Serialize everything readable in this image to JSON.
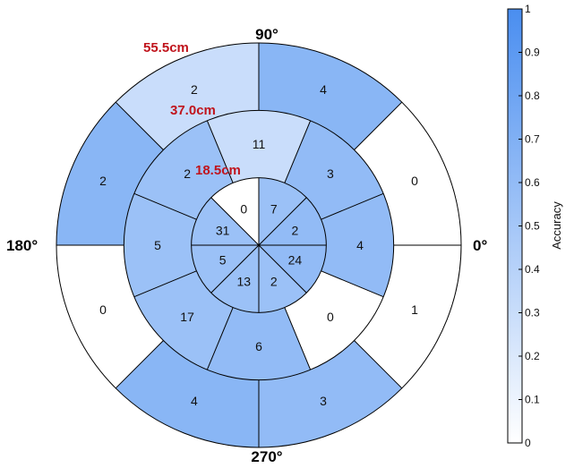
{
  "chart_data": {
    "type": "polar-heatmap",
    "angle_labels": [
      "90°",
      "180°",
      "0°",
      "270°"
    ],
    "radius_labels": [
      "55.5cm",
      "37.0cm",
      "18.5cm"
    ],
    "radii_cm": [
      18.5,
      37.0,
      55.5
    ],
    "sector_width_deg": 45,
    "rings": [
      {
        "name": "inner",
        "cells": [
          {
            "center_deg": 22.5,
            "count": 2,
            "accuracy": 0.6
          },
          {
            "center_deg": 67.5,
            "count": 7,
            "accuracy": 0.55
          },
          {
            "center_deg": 112.5,
            "count": 0,
            "accuracy": 0.0
          },
          {
            "center_deg": 157.5,
            "count": 31,
            "accuracy": 0.55
          },
          {
            "center_deg": 202.5,
            "count": 5,
            "accuracy": 0.55
          },
          {
            "center_deg": 247.5,
            "count": 13,
            "accuracy": 0.55
          },
          {
            "center_deg": 292.5,
            "count": 2,
            "accuracy": 0.55
          },
          {
            "center_deg": 337.5,
            "count": 24,
            "accuracy": 0.6
          }
        ]
      },
      {
        "name": "middle",
        "cells": [
          {
            "center_deg": 45,
            "count": 3,
            "accuracy": 0.6
          },
          {
            "center_deg": 90,
            "count": 11,
            "accuracy": 0.3
          },
          {
            "center_deg": 135,
            "count": 2,
            "accuracy": 0.55
          },
          {
            "center_deg": 180,
            "count": 5,
            "accuracy": 0.55
          },
          {
            "center_deg": 225,
            "count": 17,
            "accuracy": 0.55
          },
          {
            "center_deg": 270,
            "count": 6,
            "accuracy": 0.6
          },
          {
            "center_deg": 315,
            "count": 0,
            "accuracy": 0.0
          },
          {
            "center_deg": 360,
            "count": 4,
            "accuracy": 0.6
          }
        ]
      },
      {
        "name": "outer",
        "cells": [
          {
            "center_deg": 22.5,
            "count": 0,
            "accuracy": 0.0
          },
          {
            "center_deg": 67.5,
            "count": 4,
            "accuracy": 0.65
          },
          {
            "center_deg": 112.5,
            "count": 2,
            "accuracy": 0.3
          },
          {
            "center_deg": 157.5,
            "count": 2,
            "accuracy": 0.65
          },
          {
            "center_deg": 202.5,
            "count": 0,
            "accuracy": 0.0
          },
          {
            "center_deg": 247.5,
            "count": 4,
            "accuracy": 0.65
          },
          {
            "center_deg": 292.5,
            "count": 3,
            "accuracy": 0.6
          },
          {
            "center_deg": 337.5,
            "count": 1,
            "accuracy": 0.0
          }
        ]
      }
    ],
    "colorbar": {
      "label": "Accuracy",
      "min": 0,
      "max": 1,
      "ticks": [
        "0",
        "0.1",
        "0.2",
        "0.3",
        "0.4",
        "0.5",
        "0.6",
        "0.7",
        "0.8",
        "0.9",
        "1"
      ],
      "color_low": "#ffffff",
      "color_high": "#4a8ef0"
    }
  }
}
